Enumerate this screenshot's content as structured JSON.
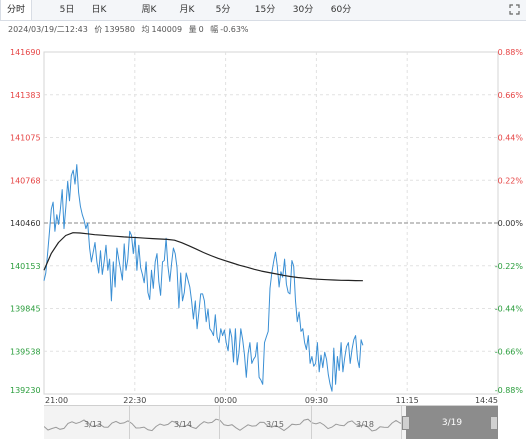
{
  "tabs": [
    {
      "label": "分时",
      "active": true
    },
    {
      "label": "5日",
      "active": false
    },
    {
      "label": "日K",
      "active": false
    },
    {
      "label": "周K",
      "active": false
    },
    {
      "label": "月K",
      "active": false
    },
    {
      "label": "5分",
      "active": false
    },
    {
      "label": "15分",
      "active": false
    },
    {
      "label": "30分",
      "active": false
    },
    {
      "label": "60分",
      "active": false
    }
  ],
  "info": {
    "datetime": "2024/03/19/二12:43",
    "price_label": "价",
    "price": "139580",
    "avg_label": "均",
    "avg": "140009",
    "volume_label": "量",
    "volume": "0",
    "change_label": "幅",
    "change": "-0.63%"
  },
  "chart_data": {
    "type": "line",
    "y_ticks": [
      "141690",
      "141383",
      "141075",
      "140768",
      "140460",
      "140153",
      "139845",
      "139538",
      "139230"
    ],
    "pct_ticks": [
      "0.88%",
      "0.66%",
      "0.44%",
      "0.22%",
      "0.00%",
      "-0.22%",
      "-0.44%",
      "-0.66%",
      "-0.88%"
    ],
    "x_ticks": [
      "21:00",
      "22:30",
      "00:00",
      "09:30",
      "11:15",
      "14:45"
    ],
    "ylim": [
      139230,
      141690
    ],
    "base_price": 140460,
    "colors": {
      "price_line": "#3a8fd4",
      "avg_line": "#222222",
      "up": "#e64545",
      "down": "#2a9d3c",
      "base": "#333333"
    },
    "series": [
      {
        "values": [
          140045,
          140100,
          140240,
          140400,
          140560,
          140610,
          140400,
          140520,
          140450,
          140560,
          140700,
          140420,
          140580,
          140760,
          140620,
          140800,
          140840,
          140740,
          140880,
          140680,
          140580,
          140520,
          140480,
          140420,
          140460,
          140280,
          140180,
          140250,
          140320,
          140180,
          140100,
          140260,
          140090,
          140180,
          140300,
          140120,
          140200,
          139900,
          140180,
          140000,
          140280,
          140200,
          140130,
          140050,
          140310,
          140120,
          140200,
          140400,
          140370,
          140240,
          140360,
          140120,
          140300,
          140140,
          140090,
          140030,
          140180,
          139960,
          139910,
          140120,
          139990,
          140180,
          140240,
          140040,
          139940,
          140180,
          140190,
          140350,
          140150,
          140040,
          140170,
          140280,
          140240,
          140140,
          139850,
          140100,
          139900,
          139960,
          140100,
          140050,
          140000,
          139900,
          139770,
          139900,
          139700,
          139820,
          139950,
          139950,
          139900,
          139750,
          139840,
          139700,
          139680,
          139650,
          139800,
          139640,
          139600,
          139700,
          139650,
          139690,
          139600,
          139540,
          139700,
          139640,
          139460,
          139700,
          139440,
          139530,
          139700,
          139620,
          139510,
          139350,
          139520,
          139600,
          139450,
          139480,
          139500,
          139600,
          139350,
          139330,
          139300,
          139600,
          139640,
          139680,
          139990,
          140100,
          140180,
          140250,
          140150,
          140000,
          140110,
          140070,
          140200,
          140020,
          139960,
          139950,
          140190,
          140150,
          139900,
          139750,
          139820,
          139680,
          139700,
          139600,
          139550,
          139650,
          139450,
          139500,
          139430,
          139450,
          139600,
          139390,
          139510,
          139420,
          139530,
          139480,
          139370,
          139300,
          139250,
          139560,
          139300,
          139500,
          139400,
          139600,
          139390,
          139490,
          139570,
          139600,
          139450,
          139550,
          139620,
          139650,
          139480,
          139420,
          139620,
          139580
        ]
      },
      {
        "values": [
          140120,
          140240,
          140320,
          140370,
          140390,
          140388,
          140382,
          140376,
          140372,
          140368,
          140364,
          140360,
          140357,
          140354,
          140351,
          140348,
          140345,
          140342,
          140336,
          140318,
          140296,
          140272,
          140248,
          140226,
          140206,
          140189,
          140172,
          140156,
          140142,
          140127,
          140114,
          140104,
          140094,
          140084,
          140075,
          140068,
          140063,
          140058,
          140055,
          140052,
          140050,
          140048,
          140047,
          140046,
          140045
        ]
      }
    ]
  },
  "navigator": {
    "dates": [
      "3/13",
      "3/14",
      "3/15",
      "3/18",
      "3/19"
    ],
    "selected": "3/19"
  }
}
